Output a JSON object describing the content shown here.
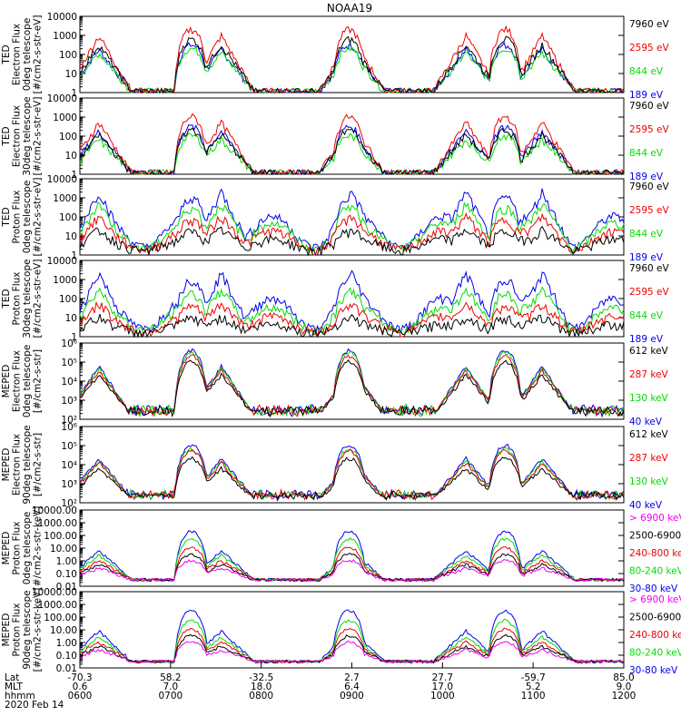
{
  "title": "NOAA19",
  "colors": {
    "black": "#000000",
    "red": "#ee0000",
    "green": "#00dd00",
    "blue": "#0000ee",
    "magenta": "#ee00ee"
  },
  "chart_data": [
    {
      "type": "line",
      "title": "NOAA19",
      "ylabel": [
        "TED",
        "Electron Flux",
        "0deg telescope",
        "[#/cm2-s-str-eV]"
      ],
      "ylim": [
        1,
        10000
      ],
      "ytick_labels": [
        "10000",
        "1000",
        "100",
        "10",
        "1"
      ],
      "legend": [
        {
          "name": "7960 eV",
          "color": "black"
        },
        {
          "name": "2595 eV",
          "color": "red"
        },
        {
          "name": "844 eV",
          "color": "green"
        },
        {
          "name": "189 eV",
          "color": "blue"
        }
      ],
      "series": [
        {
          "name": "7960 eV",
          "peak_flux": 600
        },
        {
          "name": "2595 eV",
          "peak_flux": 2000
        },
        {
          "name": "844 eV",
          "peak_flux": 200
        },
        {
          "name": "189 eV",
          "peak_flux": 300
        }
      ]
    },
    {
      "type": "line",
      "ylabel": [
        "TED",
        "Electron Flux",
        "30deg telescope",
        "[#/cm2-s-str-eV]"
      ],
      "ylim": [
        1,
        10000
      ],
      "ytick_labels": [
        "10000",
        "1000",
        "100",
        "10",
        "1"
      ],
      "legend": [
        {
          "name": "7960 eV",
          "color": "black"
        },
        {
          "name": "2595 eV",
          "color": "red"
        },
        {
          "name": "844 eV",
          "color": "green"
        },
        {
          "name": "189 eV",
          "color": "blue"
        }
      ],
      "series": [
        {
          "name": "7960 eV",
          "peak_flux": 200
        },
        {
          "name": "2595 eV",
          "peak_flux": 1000
        },
        {
          "name": "844 eV",
          "peak_flux": 100
        },
        {
          "name": "189 eV",
          "peak_flux": 300
        }
      ]
    },
    {
      "type": "line",
      "ylabel": [
        "TED",
        "Proton Flux",
        "0deg telescope",
        "[#/cm2-s-str-eV]"
      ],
      "ylim": [
        1,
        10000
      ],
      "ytick_labels": [
        "10000",
        "1000",
        "100",
        "10",
        "1"
      ],
      "legend": [
        {
          "name": "7960 eV",
          "color": "black"
        },
        {
          "name": "2595 eV",
          "color": "red"
        },
        {
          "name": "844 eV",
          "color": "green"
        },
        {
          "name": "189 eV",
          "color": "blue"
        }
      ],
      "series": [
        {
          "name": "7960 eV",
          "peak_flux": 20
        },
        {
          "name": "2595 eV",
          "peak_flux": 100
        },
        {
          "name": "844 eV",
          "peak_flux": 500
        },
        {
          "name": "189 eV",
          "peak_flux": 2000
        }
      ]
    },
    {
      "type": "line",
      "ylabel": [
        "TED",
        "Proton Flux",
        "30deg telescope",
        "[#/cm2-s-str-eV]"
      ],
      "ylim": [
        1,
        10000
      ],
      "ytick_labels": [
        "10000",
        "1000",
        "100",
        "10",
        "1"
      ],
      "legend": [
        {
          "name": "7960 eV",
          "color": "black"
        },
        {
          "name": "2595 eV",
          "color": "red"
        },
        {
          "name": "844 eV",
          "color": "green"
        },
        {
          "name": "189 eV",
          "color": "blue"
        }
      ],
      "series": [
        {
          "name": "7960 eV",
          "peak_flux": 10
        },
        {
          "name": "2595 eV",
          "peak_flux": 50
        },
        {
          "name": "844 eV",
          "peak_flux": 300
        },
        {
          "name": "189 eV",
          "peak_flux": 2000
        }
      ]
    },
    {
      "type": "line",
      "ylabel": [
        "MEPED",
        "Electron Flux",
        "0deg telescope",
        "[#/cm2-s-str]"
      ],
      "ylim": [
        100,
        1000000
      ],
      "ytick_labels": [
        "10⁶",
        "10⁵",
        "10⁴",
        "10³",
        "10²"
      ],
      "legend": [
        {
          "name": "612 keV",
          "color": "black"
        },
        {
          "name": "287 keV",
          "color": "red"
        },
        {
          "name": "130 keV",
          "color": "green"
        },
        {
          "name": "40 keV",
          "color": "blue"
        }
      ],
      "series": [
        {
          "name": "612 keV",
          "peak_flux": 100000
        },
        {
          "name": "287 keV",
          "peak_flux": 200000
        },
        {
          "name": "130 keV",
          "peak_flux": 300000
        },
        {
          "name": "40 keV",
          "peak_flux": 400000
        }
      ]
    },
    {
      "type": "line",
      "ylabel": [
        "MEPED",
        "Electron Flux",
        "90deg telescope",
        "[#/cm2-s-str]"
      ],
      "ylim": [
        100,
        1000000
      ],
      "ytick_labels": [
        "10⁶",
        "10⁵",
        "10⁴",
        "10³",
        "10²"
      ],
      "legend": [
        {
          "name": "612 keV",
          "color": "black"
        },
        {
          "name": "287 keV",
          "color": "red"
        },
        {
          "name": "130 keV",
          "color": "green"
        },
        {
          "name": "40 keV",
          "color": "blue"
        }
      ],
      "series": [
        {
          "name": "612 keV",
          "peak_flux": 20000
        },
        {
          "name": "287 keV",
          "peak_flux": 50000
        },
        {
          "name": "130 keV",
          "peak_flux": 60000
        },
        {
          "name": "40 keV",
          "peak_flux": 100000
        }
      ]
    },
    {
      "type": "line",
      "ylabel": [
        "MEPED",
        "Proton Flux",
        "0deg telescope",
        "[#/cm2-s-str-keV]"
      ],
      "ylim": [
        0.01,
        10000
      ],
      "ytick_labels": [
        "10000.00",
        "1000.00",
        "100.00",
        "10.00",
        "1.00",
        "0.10",
        "0.01"
      ],
      "legend": [
        {
          "name": "> 6900 keV",
          "color": "magenta"
        },
        {
          "name": "2500-6900",
          "color": "black"
        },
        {
          "name": "240-800 keV",
          "color": "red"
        },
        {
          "name": "80-240 keV",
          "color": "green"
        },
        {
          "name": "30-80 keV",
          "color": "blue"
        }
      ],
      "series": [
        {
          "name": "> 6900 keV",
          "peak_flux": 1
        },
        {
          "name": "2500-6900",
          "peak_flux": 3
        },
        {
          "name": "240-800 keV",
          "peak_flux": 10
        },
        {
          "name": "80-240 keV",
          "peak_flux": 50
        },
        {
          "name": "30-80 keV",
          "peak_flux": 200
        }
      ]
    },
    {
      "type": "line",
      "ylabel": [
        "MEPED",
        "Proton Flux",
        "90deg telescope",
        "[#/cm2-s-str-keV]"
      ],
      "ylim": [
        0.01,
        10000
      ],
      "ytick_labels": [
        "10000.00",
        "1000.00",
        "100.00",
        "10.00",
        "1.00",
        "0.10",
        "0.01"
      ],
      "legend": [
        {
          "name": "> 6900 keV",
          "color": "magenta"
        },
        {
          "name": "2500-6900",
          "color": "black"
        },
        {
          "name": "240-800 keV",
          "color": "red"
        },
        {
          "name": "80-240 keV",
          "color": "green"
        },
        {
          "name": "30-80 keV",
          "color": "blue"
        }
      ],
      "series": [
        {
          "name": "> 6900 keV",
          "peak_flux": 1
        },
        {
          "name": "2500-6900",
          "peak_flux": 3
        },
        {
          "name": "240-800 keV",
          "peak_flux": 10
        },
        {
          "name": "80-240 keV",
          "peak_flux": 50
        },
        {
          "name": "30-80 keV",
          "peak_flux": 300
        }
      ]
    }
  ],
  "xaxis": {
    "row_labels": [
      "Lat",
      "MLT",
      "hhmm"
    ],
    "ticks": [
      {
        "lat": "-70.3",
        "mlt": "0.6",
        "time": "0600"
      },
      {
        "lat": "58.2",
        "mlt": "7.0",
        "time": "0700"
      },
      {
        "lat": "-32.5",
        "mlt": "18.0",
        "time": "0800"
      },
      {
        "lat": "2.7",
        "mlt": "6.4",
        "time": "0900"
      },
      {
        "lat": "27.7",
        "mlt": "17.0",
        "time": "1000"
      },
      {
        "lat": "-59.7",
        "mlt": "5.2",
        "time": "1100"
      },
      {
        "lat": "85.0",
        "mlt": "9.0",
        "time": "1200"
      }
    ],
    "date": "2020 Feb 14"
  }
}
